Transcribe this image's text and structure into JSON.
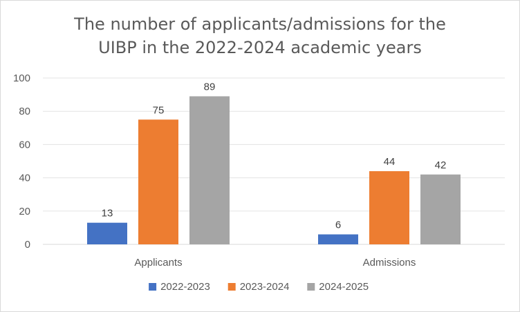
{
  "chart_data": {
    "type": "bar",
    "title_lines": [
      "The number of applicants/admissions for the",
      "UIBP in the 2022-2024 academic years"
    ],
    "categories": [
      "Applicants",
      "Admissions"
    ],
    "series": [
      {
        "name": "2022-2023",
        "color": "#4472c4",
        "values": [
          13,
          6
        ]
      },
      {
        "name": "2023-2024",
        "color": "#ed7d31",
        "values": [
          75,
          44
        ]
      },
      {
        "name": "2024-2025",
        "color": "#a5a5a5",
        "values": [
          89,
          42
        ]
      }
    ],
    "ylim": [
      0,
      100
    ],
    "yticks": [
      0,
      20,
      40,
      60,
      80,
      100
    ],
    "grid": true,
    "legend_position": "bottom",
    "xlabel": "",
    "ylabel": ""
  }
}
